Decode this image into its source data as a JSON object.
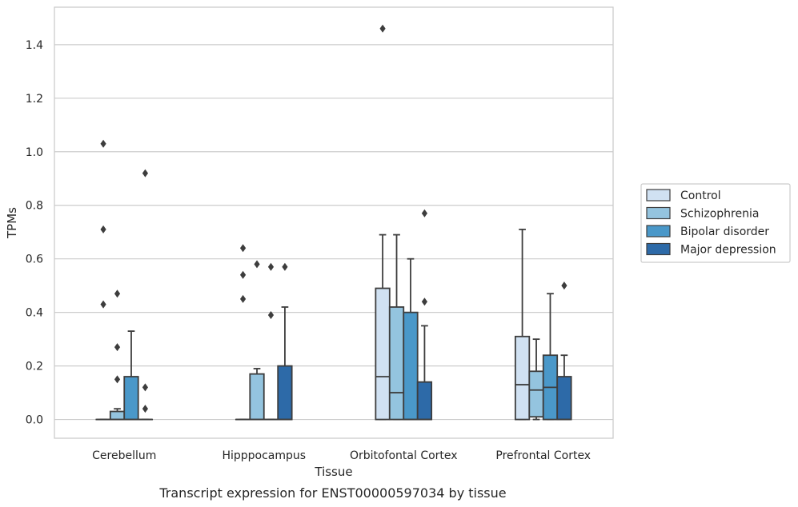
{
  "chart_data": {
    "type": "box",
    "title": "",
    "caption": "Transcript expression for ENST00000597034 by tissue",
    "xlabel": "Tissue",
    "ylabel": "TPMs",
    "ylim": [
      -0.07,
      1.54
    ],
    "yticks": [
      0.0,
      0.2,
      0.4,
      0.6,
      0.8,
      1.0,
      1.2,
      1.4
    ],
    "ytick_labels": [
      "0.0",
      "0.2",
      "0.4",
      "0.6",
      "0.8",
      "1.0",
      "1.2",
      "1.4"
    ],
    "grid": true,
    "legend_position": "right",
    "categories": [
      "Cerebellum",
      "Hipppocampus",
      "Orbitofontal Cortex",
      "Prefrontal Cortex"
    ],
    "series": [
      {
        "name": "Control",
        "color": "#d0e1f2",
        "boxes": [
          {
            "q1": 0.0,
            "median": 0.0,
            "q3": 0.0,
            "whisker_low": 0.0,
            "whisker_high": 0.0,
            "outliers": [
              0.43,
              0.71,
              1.03
            ]
          },
          {
            "q1": 0.0,
            "median": 0.0,
            "q3": 0.0,
            "whisker_low": 0.0,
            "whisker_high": 0.0,
            "outliers": [
              0.45,
              0.54,
              0.64
            ]
          },
          {
            "q1": 0.0,
            "median": 0.16,
            "q3": 0.49,
            "whisker_low": 0.0,
            "whisker_high": 0.69,
            "outliers": [
              1.46
            ]
          },
          {
            "q1": 0.0,
            "median": 0.13,
            "q3": 0.31,
            "whisker_low": 0.0,
            "whisker_high": 0.71,
            "outliers": []
          }
        ]
      },
      {
        "name": "Schizophrenia",
        "color": "#94c4df",
        "boxes": [
          {
            "q1": 0.0,
            "median": 0.0,
            "q3": 0.03,
            "whisker_low": 0.0,
            "whisker_high": 0.04,
            "outliers": [
              0.15,
              0.27,
              0.47
            ]
          },
          {
            "q1": 0.0,
            "median": 0.0,
            "q3": 0.17,
            "whisker_low": 0.0,
            "whisker_high": 0.19,
            "outliers": [
              0.58
            ]
          },
          {
            "q1": 0.0,
            "median": 0.1,
            "q3": 0.42,
            "whisker_low": 0.0,
            "whisker_high": 0.69,
            "outliers": []
          },
          {
            "q1": 0.01,
            "median": 0.11,
            "q3": 0.18,
            "whisker_low": 0.0,
            "whisker_high": 0.3,
            "outliers": []
          }
        ]
      },
      {
        "name": "Bipolar disorder",
        "color": "#4a98c9",
        "boxes": [
          {
            "q1": 0.0,
            "median": 0.0,
            "q3": 0.16,
            "whisker_low": 0.0,
            "whisker_high": 0.33,
            "outliers": []
          },
          {
            "q1": 0.0,
            "median": 0.0,
            "q3": 0.0,
            "whisker_low": 0.0,
            "whisker_high": 0.0,
            "outliers": [
              0.39,
              0.57
            ]
          },
          {
            "q1": 0.0,
            "median": 0.0,
            "q3": 0.4,
            "whisker_low": 0.0,
            "whisker_high": 0.6,
            "outliers": []
          },
          {
            "q1": 0.0,
            "median": 0.12,
            "q3": 0.24,
            "whisker_low": 0.0,
            "whisker_high": 0.47,
            "outliers": []
          }
        ]
      },
      {
        "name": "Major depression",
        "color": "#2d6aa8",
        "boxes": [
          {
            "q1": 0.0,
            "median": 0.0,
            "q3": 0.0,
            "whisker_low": 0.0,
            "whisker_high": 0.0,
            "outliers": [
              0.04,
              0.12,
              0.92
            ]
          },
          {
            "q1": 0.0,
            "median": 0.0,
            "q3": 0.2,
            "whisker_low": 0.0,
            "whisker_high": 0.42,
            "outliers": [
              0.57
            ]
          },
          {
            "q1": 0.0,
            "median": 0.0,
            "q3": 0.14,
            "whisker_low": 0.0,
            "whisker_high": 0.35,
            "outliers": [
              0.44,
              0.77
            ]
          },
          {
            "q1": 0.0,
            "median": 0.0,
            "q3": 0.16,
            "whisker_low": 0.0,
            "whisker_high": 0.24,
            "outliers": [
              0.5
            ]
          }
        ]
      }
    ]
  }
}
